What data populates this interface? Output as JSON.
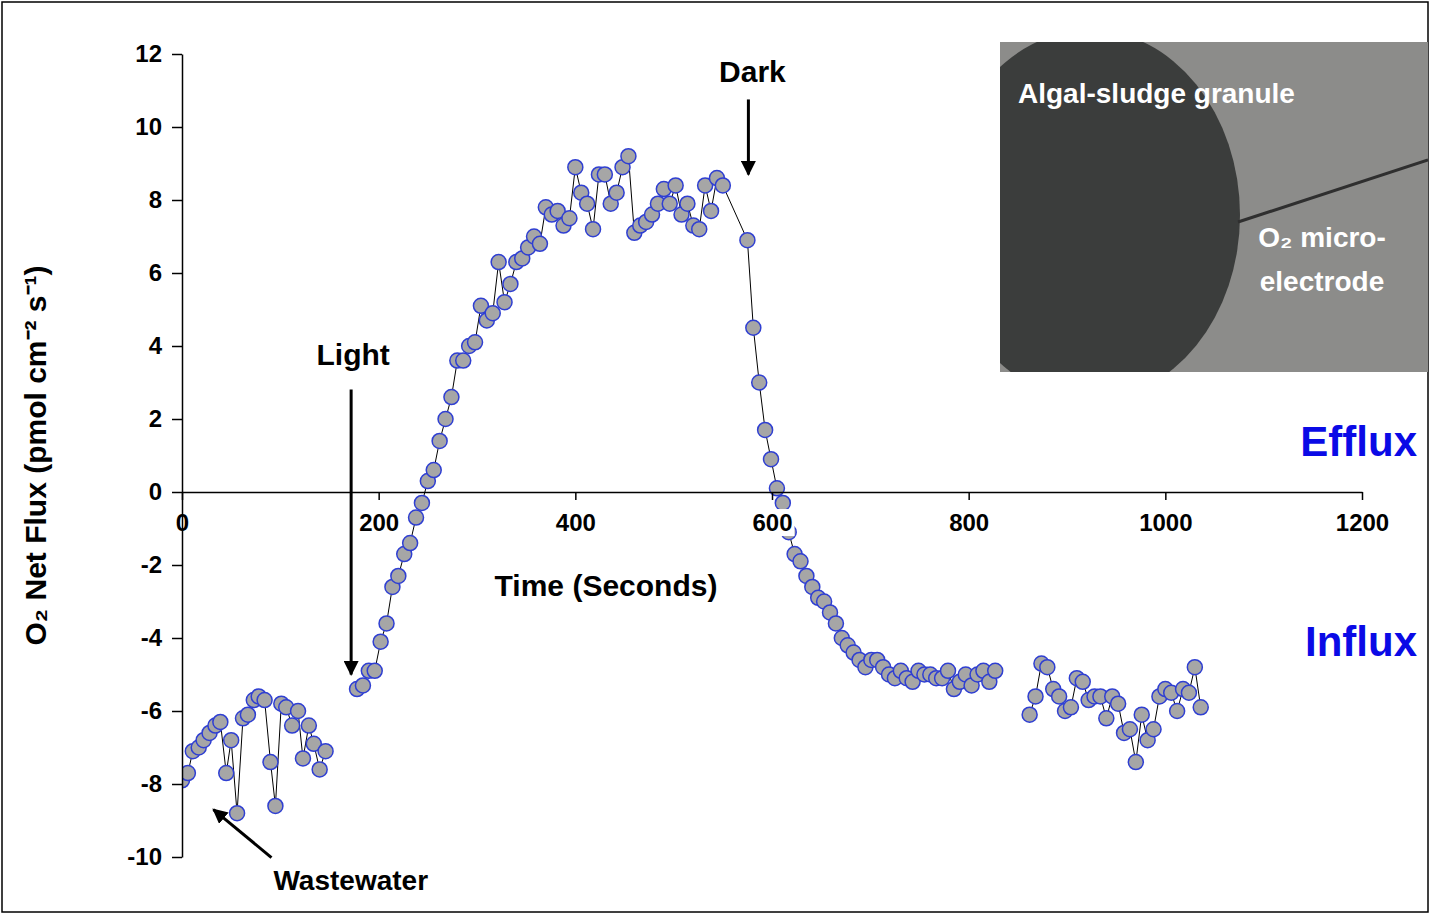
{
  "chart_data": {
    "type": "line",
    "x_label": "Time (Seconds)",
    "y_label": "O₂ Net Flux (pmol cm⁻² s⁻¹)",
    "x": [
      0,
      6,
      11,
      17,
      22,
      28,
      34,
      39,
      45,
      50,
      56,
      62,
      67,
      73,
      78,
      84,
      90,
      95,
      101,
      106,
      112,
      118,
      123,
      129,
      134,
      140,
      146,
      160,
      178,
      184,
      190,
      196,
      202,
      208,
      214,
      220,
      226,
      232,
      238,
      244,
      250,
      256,
      262,
      268,
      274,
      280,
      286,
      292,
      298,
      304,
      310,
      316,
      322,
      328,
      334,
      340,
      346,
      352,
      358,
      364,
      370,
      376,
      382,
      388,
      394,
      400,
      406,
      412,
      418,
      424,
      430,
      436,
      442,
      448,
      454,
      460,
      466,
      472,
      478,
      484,
      490,
      496,
      502,
      508,
      514,
      520,
      526,
      532,
      538,
      544,
      550,
      575,
      581,
      587,
      593,
      599,
      605,
      611,
      617,
      623,
      629,
      635,
      641,
      647,
      653,
      659,
      665,
      671,
      677,
      683,
      689,
      695,
      701,
      707,
      713,
      719,
      725,
      731,
      737,
      743,
      749,
      755,
      761,
      767,
      773,
      779,
      785,
      791,
      797,
      803,
      809,
      815,
      821,
      827,
      845,
      862,
      868,
      874,
      880,
      886,
      892,
      898,
      904,
      910,
      916,
      922,
      928,
      934,
      940,
      946,
      952,
      958,
      964,
      970,
      976,
      982,
      988,
      994,
      1000,
      1006,
      1012,
      1018,
      1024,
      1030,
      1036
    ],
    "series": [
      {
        "color": "#a6a6a6",
        "marker": "circle",
        "line_style": "solid",
        "values": [
          -7.9,
          -7.7,
          -7.1,
          -7.0,
          -6.8,
          -6.6,
          -6.4,
          -6.3,
          -7.7,
          -6.8,
          -8.8,
          -6.2,
          -6.1,
          -5.7,
          -5.6,
          -5.7,
          -7.4,
          -8.6,
          -5.8,
          -5.9,
          -6.4,
          -6.0,
          -7.3,
          -6.4,
          -6.9,
          -7.6,
          -7.1,
          null,
          -5.4,
          -5.3,
          -4.9,
          -4.9,
          -4.1,
          -3.6,
          -2.6,
          -2.3,
          -1.7,
          -1.4,
          -0.7,
          -0.3,
          0.3,
          0.6,
          1.4,
          2.0,
          2.6,
          3.6,
          3.6,
          4.0,
          4.1,
          5.1,
          4.7,
          4.9,
          6.3,
          5.2,
          5.7,
          6.3,
          6.4,
          6.7,
          7.0,
          6.8,
          7.8,
          7.6,
          7.7,
          7.3,
          7.5,
          8.9,
          8.2,
          7.9,
          7.2,
          8.7,
          8.7,
          7.9,
          8.2,
          8.9,
          9.2,
          7.1,
          7.3,
          7.4,
          7.6,
          7.9,
          8.3,
          7.9,
          8.4,
          7.6,
          7.9,
          7.3,
          7.2,
          8.4,
          7.7,
          8.6,
          8.4,
          6.9,
          4.5,
          3.0,
          1.7,
          0.9,
          0.1,
          -0.3,
          -1.1,
          -1.7,
          -1.9,
          -2.3,
          -2.6,
          -2.9,
          -3.0,
          -3.3,
          -3.6,
          -4.0,
          -4.2,
          -4.4,
          -4.6,
          -4.8,
          -4.6,
          -4.6,
          -4.8,
          -5.0,
          -5.1,
          -4.9,
          -5.1,
          -5.2,
          -4.9,
          -5.0,
          -5.0,
          -5.1,
          -5.1,
          -4.9,
          -5.4,
          -5.2,
          -5.0,
          -5.3,
          -5.0,
          -4.9,
          -5.2,
          -4.9,
          null,
          -6.1,
          -5.6,
          -4.7,
          -4.8,
          -5.4,
          -5.6,
          -6.0,
          -5.9,
          -5.1,
          -5.2,
          -5.7,
          -5.6,
          -5.6,
          -6.2,
          -5.6,
          -5.8,
          -6.6,
          -6.5,
          -7.4,
          -6.1,
          -6.8,
          -6.5,
          -5.6,
          -5.4,
          -5.5,
          -6.0,
          -5.4,
          -5.5,
          -4.8,
          -5.9
        ]
      }
    ],
    "xlim": [
      0,
      1200
    ],
    "ylim": [
      -10,
      12
    ],
    "xticks": [
      0,
      200,
      400,
      600,
      800,
      1000,
      1200
    ],
    "yticks": [
      -10,
      -8,
      -6,
      -4,
      -2,
      0,
      2,
      4,
      6,
      8,
      10,
      12
    ],
    "grid": false,
    "annotations": [
      {
        "text": "Light",
        "x": 172,
        "y": -5.0
      },
      {
        "text": "Dark",
        "x": 576,
        "y": 8.7
      },
      {
        "text": "Wastewater",
        "x": 32,
        "y": -8.7
      }
    ],
    "side_labels": [
      "Efflux",
      "Influx"
    ],
    "inset_labels": [
      "Algal-sludge granule",
      "O₂ micro-electrode"
    ]
  }
}
